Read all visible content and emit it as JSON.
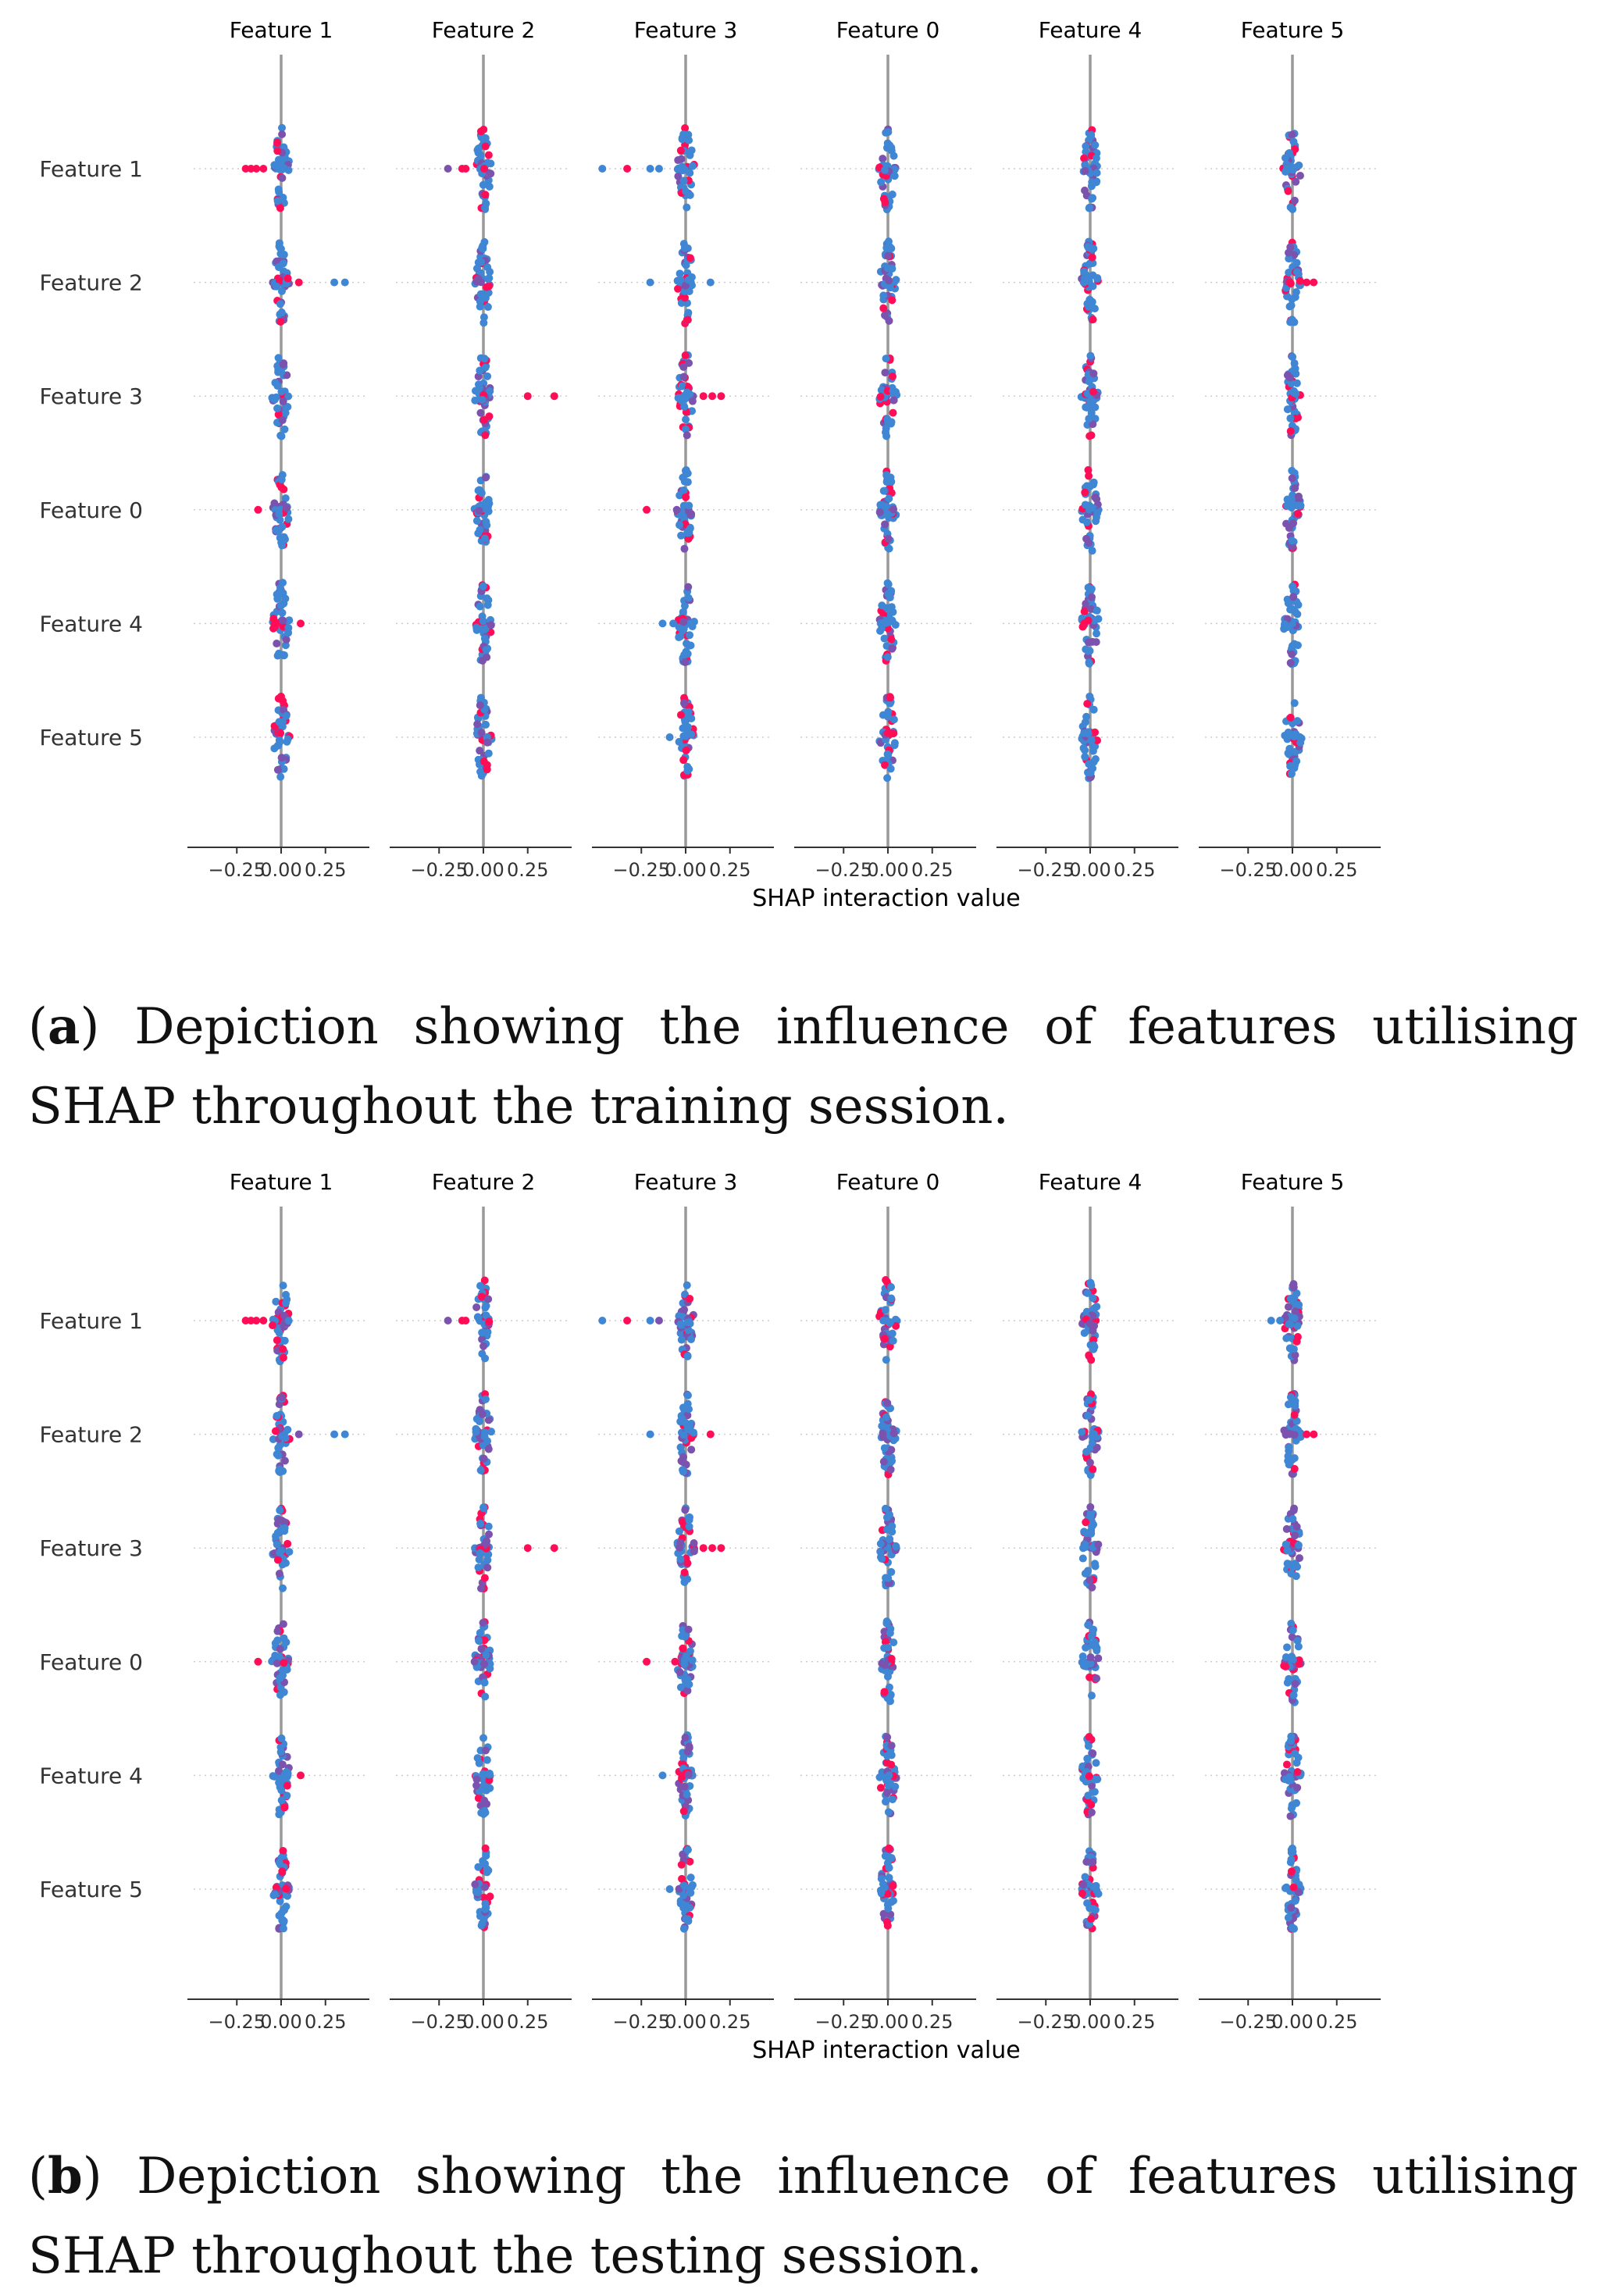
{
  "colors": {
    "low": "#3f86d4",
    "high": "#ff0d57",
    "mid": "#7b52ae",
    "axis": "#999999",
    "grid": "#cccccc",
    "text": "#333333"
  },
  "figures": [
    {
      "id": "a",
      "caption_label": "a",
      "caption_text": "Depiction showing the influence of features utilising SHAP throughout the training session.",
      "chart_data": {
        "type": "scatter",
        "subtype": "shap-interaction-beeswarm-grid",
        "column_titles": [
          "Feature 1",
          "Feature 2",
          "Feature 3",
          "Feature 0",
          "Feature 4",
          "Feature 5"
        ],
        "row_labels": [
          "Feature 1",
          "Feature 2",
          "Feature 3",
          "Feature 0",
          "Feature 4",
          "Feature 5"
        ],
        "xlabel": "SHAP interaction value",
        "xticks": [
          -0.25,
          0.0,
          0.25
        ],
        "xtick_labels": [
          "−0.25",
          "0.00",
          "0.25"
        ],
        "xlim": [
          -0.5,
          0.5
        ],
        "outliers": [
          {
            "row": 0,
            "col": 0,
            "x": [
              -0.2,
              -0.17,
              -0.14,
              -0.1
            ],
            "c": [
              "high",
              "high",
              "high",
              "high"
            ]
          },
          {
            "row": 1,
            "col": 0,
            "x": [
              0.1,
              0.3,
              0.36
            ],
            "c": [
              "high",
              "low",
              "low"
            ]
          },
          {
            "row": 3,
            "col": 0,
            "x": [
              -0.13
            ],
            "c": [
              "high"
            ]
          },
          {
            "row": 4,
            "col": 0,
            "x": [
              0.11
            ],
            "c": [
              "high"
            ]
          },
          {
            "row": 0,
            "col": 1,
            "x": [
              -0.2,
              -0.12,
              -0.1
            ],
            "c": [
              "mid",
              "high",
              "high"
            ]
          },
          {
            "row": 2,
            "col": 1,
            "x": [
              0.25,
              0.4
            ],
            "c": [
              "high",
              "high"
            ]
          },
          {
            "row": 0,
            "col": 2,
            "x": [
              -0.47,
              -0.33,
              -0.2,
              -0.15
            ],
            "c": [
              "low",
              "high",
              "low",
              "low"
            ]
          },
          {
            "row": 1,
            "col": 2,
            "x": [
              -0.2,
              0.14
            ],
            "c": [
              "low",
              "low"
            ]
          },
          {
            "row": 2,
            "col": 2,
            "x": [
              0.1,
              0.15,
              0.2
            ],
            "c": [
              "high",
              "high",
              "high"
            ]
          },
          {
            "row": 3,
            "col": 2,
            "x": [
              -0.22,
              -0.05
            ],
            "c": [
              "high",
              "mid"
            ]
          },
          {
            "row": 4,
            "col": 2,
            "x": [
              -0.13,
              -0.07
            ],
            "c": [
              "low",
              "low"
            ]
          },
          {
            "row": 5,
            "col": 2,
            "x": [
              -0.09
            ],
            "c": [
              "low"
            ]
          },
          {
            "row": 1,
            "col": 5,
            "x": [
              0.08,
              0.12
            ],
            "c": [
              "high",
              "high"
            ]
          }
        ]
      }
    },
    {
      "id": "b",
      "caption_label": "b",
      "caption_text": "Depiction showing the influence of features utilising SHAP throughout the testing session.",
      "chart_data": {
        "type": "scatter",
        "subtype": "shap-interaction-beeswarm-grid",
        "column_titles": [
          "Feature 1",
          "Feature 2",
          "Feature 3",
          "Feature 0",
          "Feature 4",
          "Feature 5"
        ],
        "row_labels": [
          "Feature 1",
          "Feature 2",
          "Feature 3",
          "Feature 0",
          "Feature 4",
          "Feature 5"
        ],
        "xlabel": "SHAP interaction value",
        "xticks": [
          -0.25,
          0.0,
          0.25
        ],
        "xtick_labels": [
          "−0.25",
          "0.00",
          "0.25"
        ],
        "xlim": [
          -0.5,
          0.5
        ],
        "outliers": [
          {
            "row": 0,
            "col": 0,
            "x": [
              -0.2,
              -0.17,
              -0.14,
              -0.1
            ],
            "c": [
              "high",
              "high",
              "high",
              "high"
            ]
          },
          {
            "row": 1,
            "col": 0,
            "x": [
              0.1,
              0.3,
              0.36
            ],
            "c": [
              "mid",
              "low",
              "low"
            ]
          },
          {
            "row": 3,
            "col": 0,
            "x": [
              -0.13
            ],
            "c": [
              "high"
            ]
          },
          {
            "row": 4,
            "col": 0,
            "x": [
              0.11
            ],
            "c": [
              "high"
            ]
          },
          {
            "row": 0,
            "col": 1,
            "x": [
              -0.2,
              -0.12,
              -0.1
            ],
            "c": [
              "mid",
              "high",
              "high"
            ]
          },
          {
            "row": 2,
            "col": 1,
            "x": [
              0.25,
              0.4
            ],
            "c": [
              "high",
              "high"
            ]
          },
          {
            "row": 3,
            "col": 1,
            "x": [
              -0.05
            ],
            "c": [
              "mid"
            ]
          },
          {
            "row": 0,
            "col": 2,
            "x": [
              -0.47,
              -0.33,
              -0.2,
              -0.15
            ],
            "c": [
              "low",
              "high",
              "low",
              "mid"
            ]
          },
          {
            "row": 1,
            "col": 2,
            "x": [
              -0.2,
              0.14
            ],
            "c": [
              "low",
              "high"
            ]
          },
          {
            "row": 2,
            "col": 2,
            "x": [
              0.1,
              0.15,
              0.2
            ],
            "c": [
              "high",
              "high",
              "high"
            ]
          },
          {
            "row": 3,
            "col": 2,
            "x": [
              -0.22,
              -0.06
            ],
            "c": [
              "high",
              "high"
            ]
          },
          {
            "row": 4,
            "col": 2,
            "x": [
              -0.13
            ],
            "c": [
              "low"
            ]
          },
          {
            "row": 5,
            "col": 2,
            "x": [
              -0.09
            ],
            "c": [
              "low"
            ]
          },
          {
            "row": 0,
            "col": 5,
            "x": [
              -0.12,
              -0.07
            ],
            "c": [
              "low",
              "low"
            ]
          },
          {
            "row": 1,
            "col": 5,
            "x": [
              0.08,
              0.12
            ],
            "c": [
              "high",
              "high"
            ]
          }
        ]
      }
    }
  ]
}
